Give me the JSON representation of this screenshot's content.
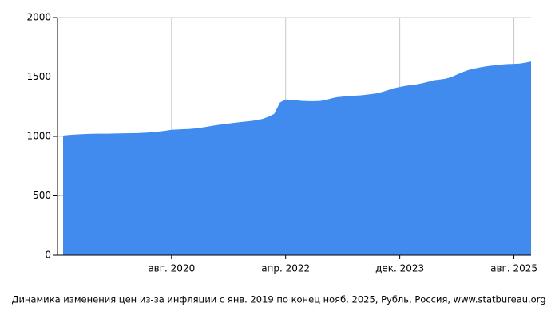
{
  "chart_data": {
    "type": "area",
    "title": "Динамика изменения цен из-за инфляции с янв. 2019 по конец нояб. 2025, Рубль, Россия, www.statbureau.org",
    "color": "#428bee",
    "grid": true,
    "x": [
      "2019-01",
      "2019-02",
      "2019-03",
      "2019-04",
      "2019-05",
      "2019-06",
      "2019-07",
      "2019-08",
      "2019-09",
      "2019-10",
      "2019-11",
      "2019-12",
      "2020-01",
      "2020-02",
      "2020-03",
      "2020-04",
      "2020-05",
      "2020-06",
      "2020-07",
      "2020-08",
      "2020-09",
      "2020-10",
      "2020-11",
      "2020-12",
      "2021-01",
      "2021-02",
      "2021-03",
      "2021-04",
      "2021-05",
      "2021-06",
      "2021-07",
      "2021-08",
      "2021-09",
      "2021-10",
      "2021-11",
      "2021-12",
      "2022-01",
      "2022-02",
      "2022-03",
      "2022-04",
      "2022-05",
      "2022-06",
      "2022-07",
      "2022-08",
      "2022-09",
      "2022-10",
      "2022-11",
      "2022-12",
      "2023-01",
      "2023-02",
      "2023-03",
      "2023-04",
      "2023-05",
      "2023-06",
      "2023-07",
      "2023-08",
      "2023-09",
      "2023-10",
      "2023-11",
      "2023-12",
      "2024-01",
      "2024-02",
      "2024-03",
      "2024-04",
      "2024-05",
      "2024-06",
      "2024-07",
      "2024-08",
      "2024-09",
      "2024-10",
      "2024-11",
      "2024-12",
      "2025-01",
      "2025-02",
      "2025-03",
      "2025-04",
      "2025-05",
      "2025-06",
      "2025-07",
      "2025-08",
      "2025-09",
      "2025-10",
      "2025-11"
    ],
    "values": [
      1007,
      1012,
      1015,
      1018,
      1020,
      1022,
      1023,
      1023,
      1023,
      1024,
      1025,
      1026,
      1027,
      1028,
      1030,
      1033,
      1037,
      1042,
      1048,
      1055,
      1058,
      1060,
      1062,
      1066,
      1072,
      1080,
      1088,
      1096,
      1102,
      1108,
      1114,
      1120,
      1125,
      1130,
      1138,
      1148,
      1165,
      1190,
      1285,
      1310,
      1308,
      1303,
      1298,
      1296,
      1296,
      1298,
      1305,
      1320,
      1330,
      1335,
      1338,
      1342,
      1345,
      1350,
      1356,
      1362,
      1375,
      1390,
      1405,
      1415,
      1425,
      1432,
      1438,
      1448,
      1460,
      1472,
      1478,
      1485,
      1498,
      1520,
      1540,
      1558,
      1570,
      1580,
      1588,
      1595,
      1600,
      1605,
      1608,
      1610,
      1612,
      1620,
      1630
    ],
    "xlim": [
      "2019-01",
      "2025-11"
    ],
    "xticks": [
      {
        "value": "2020-08",
        "label": "авг. 2020"
      },
      {
        "value": "2022-04",
        "label": "апр. 2022"
      },
      {
        "value": "2023-12",
        "label": "дек. 2023"
      },
      {
        "value": "2025-08",
        "label": "авг. 2025"
      }
    ],
    "ylim": [
      0,
      2000
    ],
    "yticks": [
      0,
      500,
      1000,
      1500,
      2000
    ]
  }
}
